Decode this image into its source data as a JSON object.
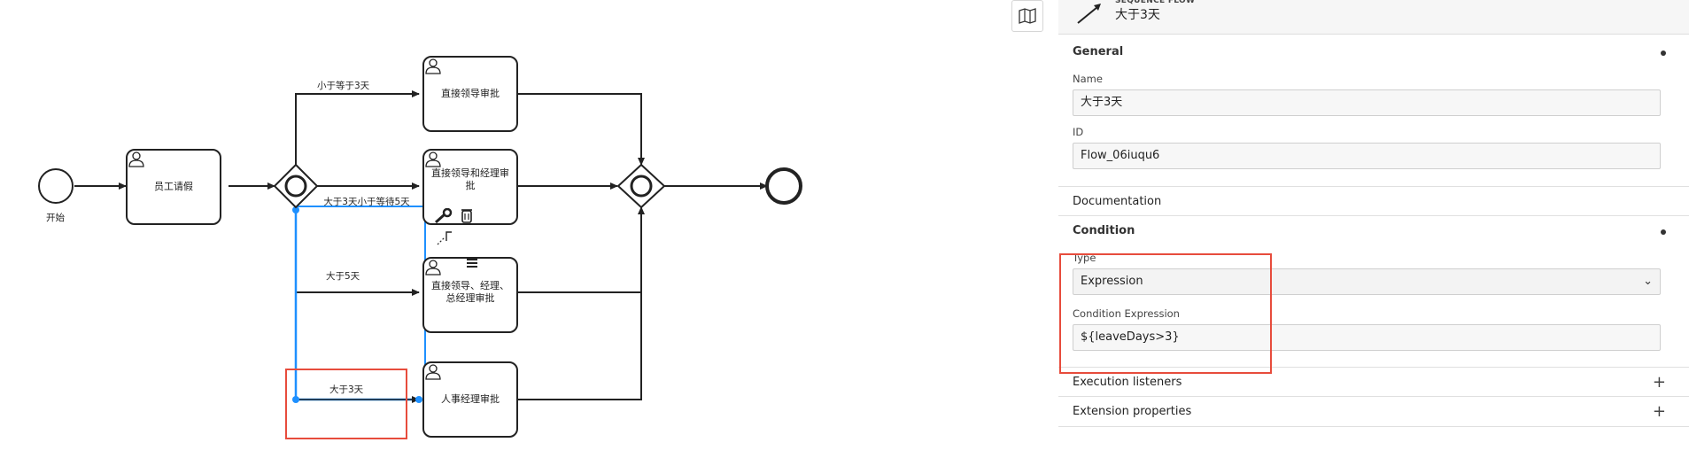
{
  "diagram": {
    "start_label": "开始",
    "tasks": {
      "leave_request": "员工请假",
      "direct_leader": "直接领导审批",
      "leader_manager": "直接领导和经理审批",
      "leader_manager_gm": "直接领导、经理、总经理审批",
      "hr_manager": "人事经理审批"
    },
    "flows": {
      "le3": "小于等于3天",
      "gt3le5": "大于3天小于等待5天",
      "gt5": "大于5天",
      "gt3": "大于3天"
    }
  },
  "panel": {
    "header_type": "SEQUENCE FLOW",
    "header_name": "大于3天",
    "general": {
      "title": "General",
      "name_label": "Name",
      "name_value": "大于3天",
      "id_label": "ID",
      "id_value": "Flow_06iuqu6"
    },
    "documentation": {
      "title": "Documentation"
    },
    "condition": {
      "title": "Condition",
      "type_label": "Type",
      "type_value": "Expression",
      "expr_label": "Condition Expression",
      "expr_value": "${leaveDays>3}"
    },
    "execution_listeners": {
      "title": "Execution listeners"
    },
    "extension_properties": {
      "title": "Extension properties"
    }
  },
  "colors": {
    "highlight": "#e74c3c",
    "selected_flow": "#1e90ff"
  },
  "icons": [
    "map-icon",
    "sequence-flow-icon",
    "user-task-icon",
    "wrench-icon",
    "trash-icon",
    "connect-icon",
    "multi-instance-icon",
    "exclusive-gateway-icon"
  ]
}
